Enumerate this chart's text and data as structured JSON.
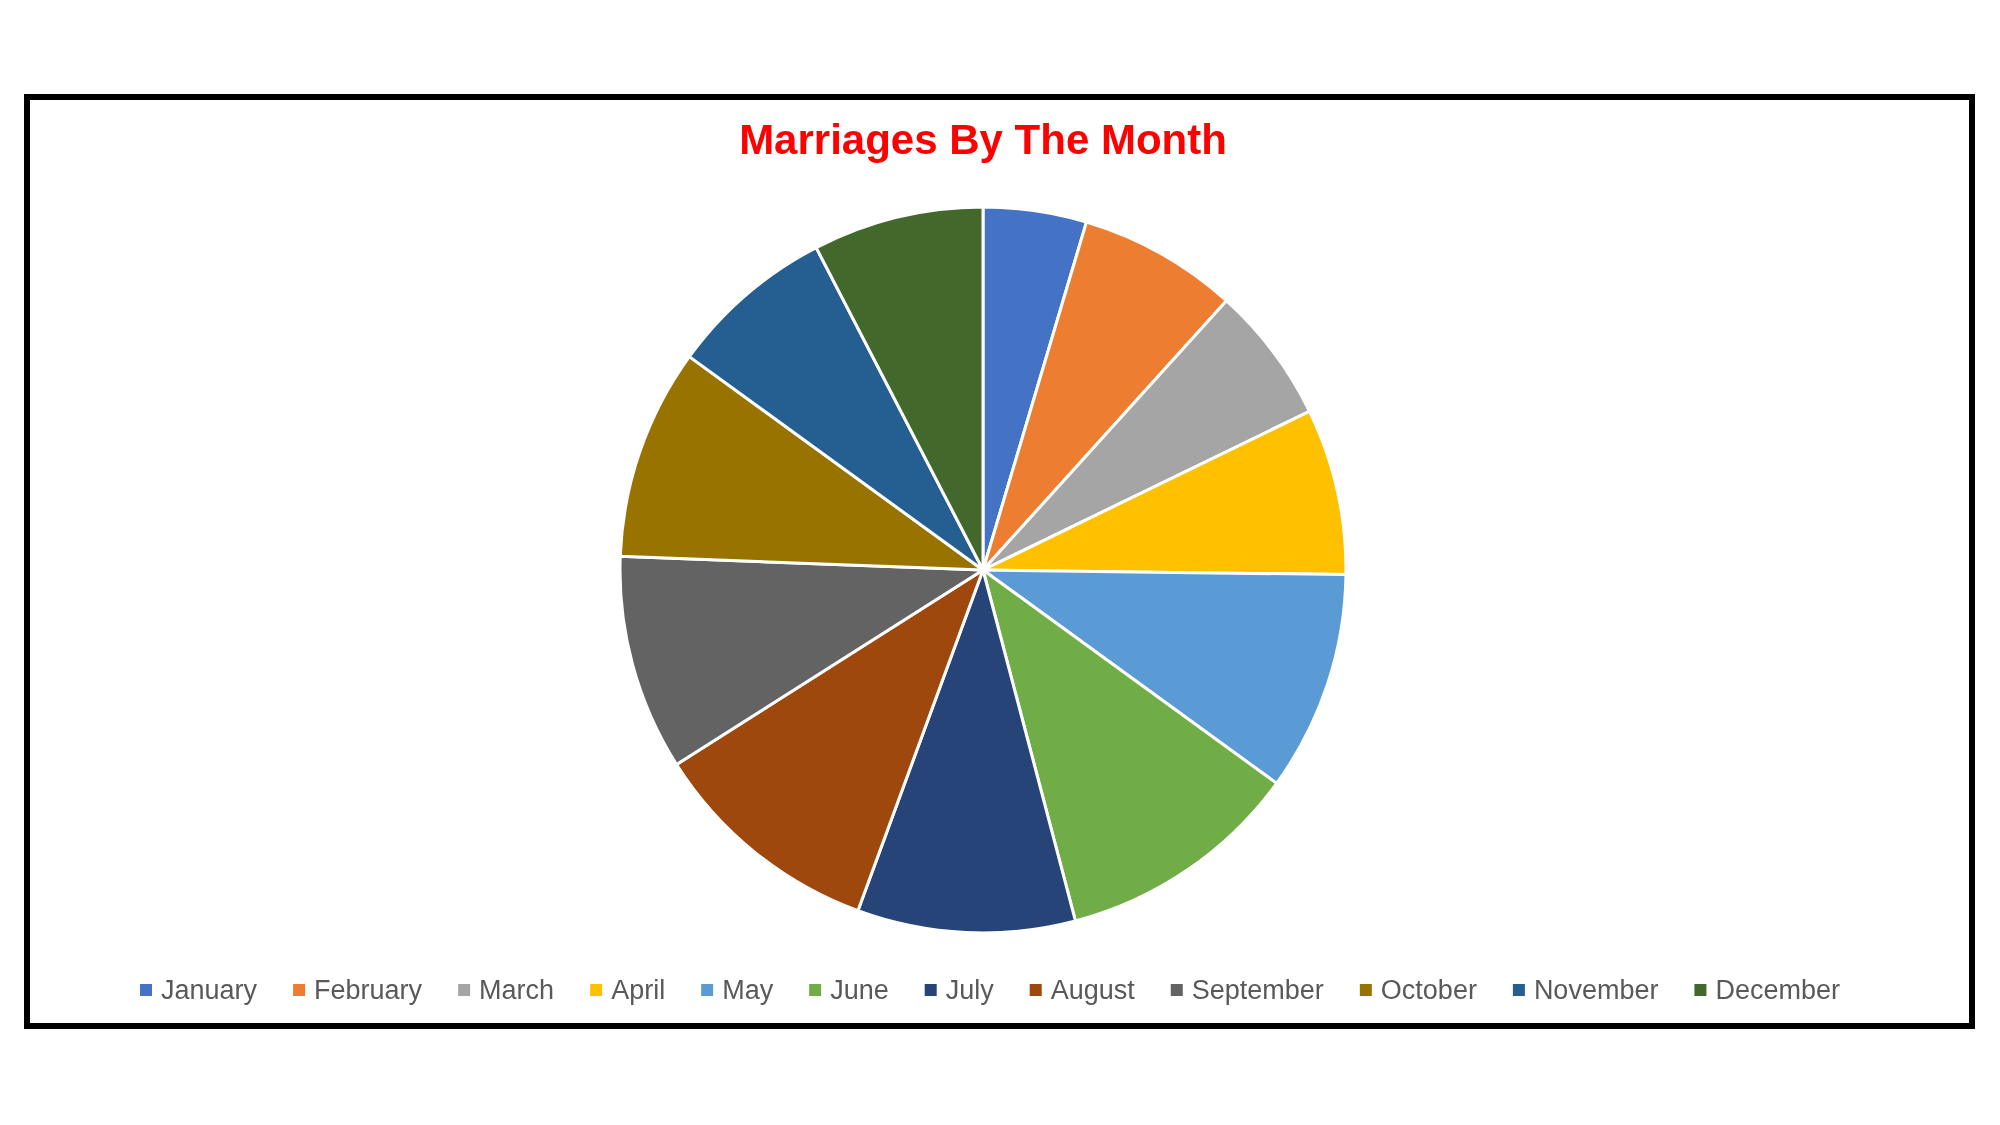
{
  "chart_data": {
    "type": "pie",
    "title": "Marriages By The Month",
    "categories": [
      "January",
      "February",
      "March",
      "April",
      "May",
      "June",
      "July",
      "August",
      "September",
      "October",
      "November",
      "December"
    ],
    "values": [
      4.6,
      7.1,
      6.1,
      7.4,
      9.8,
      10.9,
      9.7,
      10.4,
      9.6,
      9.4,
      7.4,
      7.6
    ],
    "colors": [
      "#4472c4",
      "#ed7d31",
      "#a5a5a5",
      "#ffc000",
      "#5b9bd5",
      "#70ad47",
      "#264478",
      "#9e480e",
      "#636363",
      "#997300",
      "#255e91",
      "#43682b"
    ],
    "legend": "bottom"
  }
}
